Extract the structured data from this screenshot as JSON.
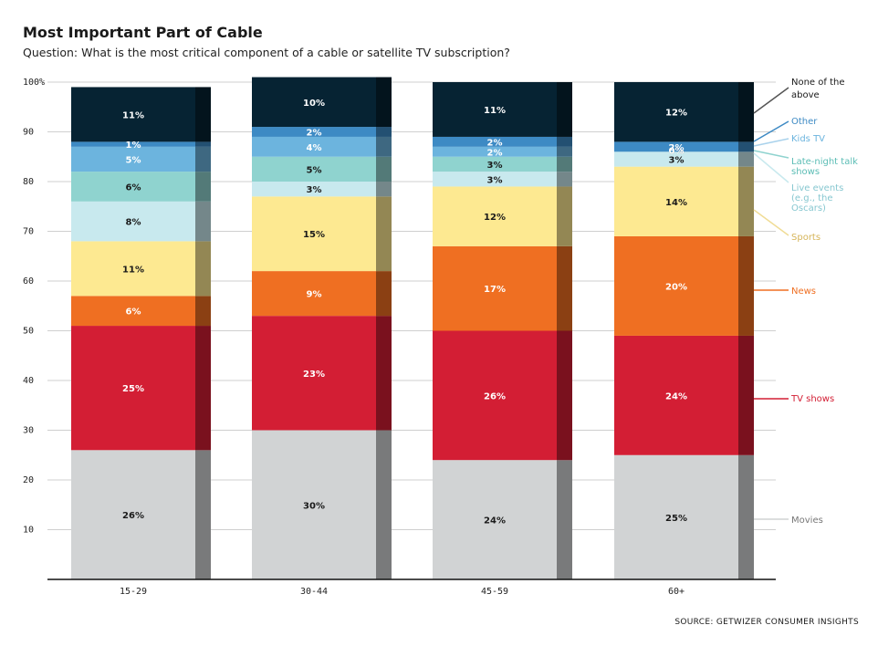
{
  "chart_data": {
    "type": "bar",
    "stacked": true,
    "title": "Most Important Part of Cable",
    "subtitle": "Question: What is the most critical component of a cable or satellite TV subscription?",
    "source": "SOURCE: GETWIZER CONSUMER INSIGHTS",
    "categories": [
      "15-29",
      "30-44",
      "45-59",
      "60+"
    ],
    "ylim": [
      0,
      100
    ],
    "y_ticks": [
      {
        "value": 100,
        "label": "100%"
      },
      {
        "value": 90,
        "label": "90"
      },
      {
        "value": 80,
        "label": "80"
      },
      {
        "value": 70,
        "label": "70"
      },
      {
        "value": 60,
        "label": "60"
      },
      {
        "value": 50,
        "label": "50"
      },
      {
        "value": 40,
        "label": "40"
      },
      {
        "value": 30,
        "label": "30"
      },
      {
        "value": 20,
        "label": "20"
      },
      {
        "value": 10,
        "label": "10"
      }
    ],
    "grid": true,
    "legend_position": "right",
    "series": [
      {
        "name": "Movies",
        "color": "#d1d3d4",
        "label_color": "#1a1a1a",
        "values": [
          26,
          30,
          24,
          25
        ],
        "labels": [
          "26%",
          "30%",
          "24%",
          "25%"
        ]
      },
      {
        "name": "TV shows",
        "color": "#d31e34",
        "label_color": "#ffffff",
        "values": [
          25,
          23,
          26,
          24
        ],
        "labels": [
          "25%",
          "23%",
          "26%",
          "24%"
        ]
      },
      {
        "name": "News",
        "color": "#ef6f22",
        "label_color": "#ffffff",
        "values": [
          6,
          9,
          17,
          20
        ],
        "labels": [
          "6%",
          "9%",
          "17%",
          "20%"
        ]
      },
      {
        "name": "Sports",
        "color": "#fde991",
        "label_color": "#1a1a1a",
        "values": [
          11,
          15,
          12,
          14
        ],
        "labels": [
          "11%",
          "15%",
          "12%",
          "14%"
        ]
      },
      {
        "name": "Live events (e.g., the Oscars)",
        "color": "#c8e9ee",
        "label_color": "#1a1a1a",
        "values": [
          8,
          3,
          3,
          3
        ],
        "labels": [
          "8%",
          "3%",
          "3%",
          "3%"
        ]
      },
      {
        "name": "Late-night talk shows",
        "color": "#8fd3cf",
        "label_color": "#1a1a1a",
        "values": [
          6,
          5,
          3,
          0
        ],
        "labels": [
          "6%",
          "5%",
          "3%",
          "0%"
        ]
      },
      {
        "name": "Kids TV",
        "color": "#6cb4de",
        "label_color": "#ffffff",
        "values": [
          5,
          4,
          2,
          0
        ],
        "labels": [
          "5%",
          "4%",
          "2%",
          "0%"
        ]
      },
      {
        "name": "Other",
        "color": "#3d8ac4",
        "label_color": "#ffffff",
        "values": [
          1,
          2,
          2,
          2
        ],
        "labels": [
          "1%",
          "2%",
          "2%",
          "2%"
        ]
      },
      {
        "name": "None of the above",
        "color": "#062333",
        "label_color": "#ffffff",
        "values": [
          11,
          10,
          11,
          12
        ],
        "labels": [
          "11%",
          "10%",
          "11%",
          "12%"
        ]
      }
    ],
    "legend": [
      {
        "text": "None of the above",
        "color": "#1a1a1a",
        "line_color": "#555555"
      },
      {
        "text": "Other",
        "color": "#3d8ac4",
        "line_color": "#3d8ac4"
      },
      {
        "text": "Kids TV",
        "color": "#6cb4de",
        "line_color": "#a9d2ec"
      },
      {
        "text": "Late-night talk shows",
        "color": "#5bbdb5",
        "line_color": "#8fd3cf"
      },
      {
        "text": "Live events (e.g., the Oscars)",
        "color": "#86c7d0",
        "line_color": "#c8e9ee"
      },
      {
        "text": "Sports",
        "color": "#d6b55a",
        "line_color": "#f0dc95"
      },
      {
        "text": "News",
        "color": "#ef6f22",
        "line_color": "#ef6f22"
      },
      {
        "text": "TV shows",
        "color": "#d31e34",
        "line_color": "#d31e34"
      },
      {
        "text": "Movies",
        "color": "#777777",
        "line_color": "#d1d3d4"
      }
    ]
  }
}
